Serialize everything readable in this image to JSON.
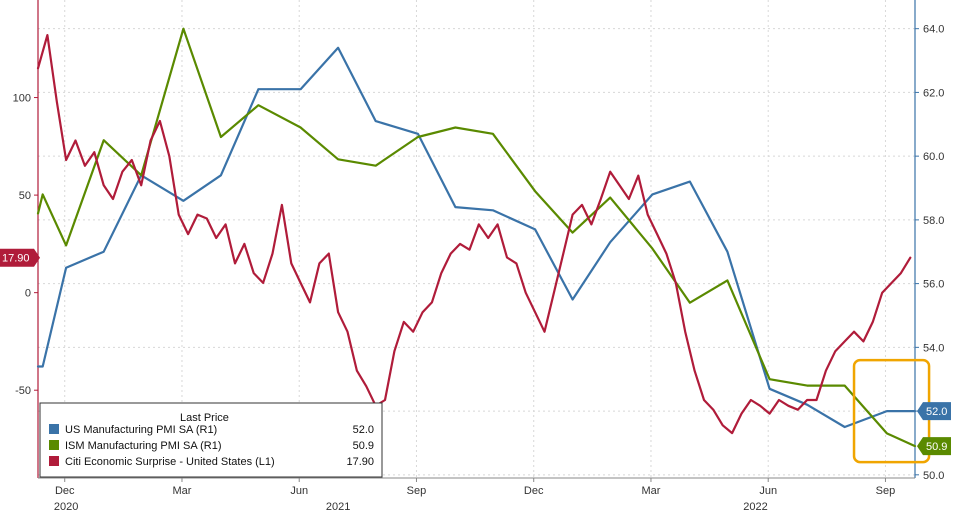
{
  "chart_data": {
    "type": "line",
    "left_axis": {
      "ticks": [
        -50,
        0,
        50,
        100
      ],
      "range": [
        -95,
        150
      ]
    },
    "right_axis": {
      "ticks": [
        50.0,
        52.0,
        54.0,
        56.0,
        58.0,
        60.0,
        62.0,
        64.0
      ],
      "range": [
        49.9,
        64.9
      ]
    },
    "x_range": [
      2020.86,
      2022.73
    ],
    "x_month_ticks": [
      {
        "label": "Dec",
        "x": 2020.917
      },
      {
        "label": "Mar",
        "x": 2021.167
      },
      {
        "label": "Jun",
        "x": 2021.417
      },
      {
        "label": "Sep",
        "x": 2021.667
      },
      {
        "label": "Dec",
        "x": 2021.917
      },
      {
        "label": "Mar",
        "x": 2022.167
      },
      {
        "label": "Jun",
        "x": 2022.417
      },
      {
        "label": "Sep",
        "x": 2022.667
      }
    ],
    "x_year_labels": [
      {
        "label": "2020",
        "x": 2020.92
      },
      {
        "label": "2021",
        "x": 2021.5
      },
      {
        "label": "2022",
        "x": 2022.39
      }
    ],
    "grid": true,
    "legend": {
      "title": "Last Price",
      "placement": "bottom-left",
      "entries": [
        {
          "label": "US Manufacturing PMI SA  (R1)",
          "value": "52.0",
          "color": "#3a73a8"
        },
        {
          "label": "ISM Manufacturing PMI SA  (R1)",
          "value": "50.9",
          "color": "#5a8a00"
        },
        {
          "label": "Citi Economic Surprise - United States  (L1)",
          "value": "17.90",
          "color": "#b01c3a"
        }
      ]
    },
    "last_value_tags": [
      {
        "text": "17.90",
        "axis": "left",
        "value": 17.9,
        "color": "#b01c3a"
      },
      {
        "text": "52.0",
        "axis": "right",
        "value": 52.0,
        "color": "#3a73a8"
      },
      {
        "text": "50.9",
        "axis": "right",
        "value": 50.9,
        "color": "#5a8a00"
      }
    ],
    "highlight_box_color": "#f0a500",
    "series": [
      {
        "name": "US Manufacturing PMI SA",
        "axis": "right",
        "color": "#3a73a8",
        "x": [
          2020.86,
          2020.87,
          2020.92,
          2021.0,
          2021.08,
          2021.17,
          2021.25,
          2021.33,
          2021.42,
          2021.5,
          2021.58,
          2021.67,
          2021.75,
          2021.83,
          2021.92,
          2022.0,
          2022.08,
          2022.17,
          2022.25,
          2022.33,
          2022.42,
          2022.5,
          2022.58,
          2022.67,
          2022.73
        ],
        "y": [
          53.4,
          53.4,
          56.5,
          57.0,
          59.4,
          58.6,
          59.4,
          62.1,
          62.1,
          63.4,
          61.1,
          60.7,
          58.4,
          58.3,
          57.7,
          55.5,
          57.3,
          58.8,
          59.2,
          57.0,
          52.7,
          52.2,
          51.5,
          52.0,
          52.0
        ]
      },
      {
        "name": "ISM Manufacturing PMI SA",
        "axis": "right",
        "color": "#5a8a00",
        "x": [
          2020.86,
          2020.87,
          2020.92,
          2021.0,
          2021.08,
          2021.17,
          2021.25,
          2021.33,
          2021.42,
          2021.5,
          2021.58,
          2021.67,
          2021.75,
          2021.83,
          2021.92,
          2022.0,
          2022.08,
          2022.17,
          2022.25,
          2022.33,
          2022.42,
          2022.5,
          2022.58,
          2022.67,
          2022.73
        ],
        "y": [
          58.2,
          58.8,
          57.2,
          60.5,
          59.4,
          64.0,
          60.6,
          61.6,
          60.9,
          59.9,
          59.7,
          60.6,
          60.9,
          60.7,
          58.9,
          57.6,
          58.7,
          57.1,
          55.4,
          56.1,
          53.0,
          52.8,
          52.8,
          51.3,
          50.9
        ]
      },
      {
        "name": "Citi Economic Surprise - United States",
        "axis": "left",
        "color": "#b01c3a",
        "x": [
          2020.86,
          2020.88,
          2020.9,
          2020.92,
          2020.94,
          2020.96,
          2020.98,
          2021.0,
          2021.02,
          2021.04,
          2021.06,
          2021.08,
          2021.1,
          2021.12,
          2021.14,
          2021.16,
          2021.18,
          2021.2,
          2021.22,
          2021.24,
          2021.26,
          2021.28,
          2021.3,
          2021.32,
          2021.34,
          2021.36,
          2021.38,
          2021.4,
          2021.42,
          2021.44,
          2021.46,
          2021.48,
          2021.5,
          2021.52,
          2021.54,
          2021.56,
          2021.58,
          2021.6,
          2021.62,
          2021.64,
          2021.66,
          2021.68,
          2021.7,
          2021.72,
          2021.74,
          2021.76,
          2021.78,
          2021.8,
          2021.82,
          2021.84,
          2021.86,
          2021.88,
          2021.9,
          2021.92,
          2021.94,
          2021.96,
          2021.98,
          2022.0,
          2022.02,
          2022.04,
          2022.06,
          2022.08,
          2022.1,
          2022.12,
          2022.14,
          2022.16,
          2022.18,
          2022.2,
          2022.22,
          2022.24,
          2022.26,
          2022.28,
          2022.3,
          2022.32,
          2022.34,
          2022.36,
          2022.38,
          2022.4,
          2022.42,
          2022.44,
          2022.46,
          2022.48,
          2022.5,
          2022.52,
          2022.54,
          2022.56,
          2022.58,
          2022.6,
          2022.62,
          2022.64,
          2022.66,
          2022.68,
          2022.7,
          2022.72
        ],
        "y": [
          115,
          132,
          98,
          68,
          78,
          65,
          72,
          55,
          48,
          62,
          68,
          55,
          78,
          88,
          70,
          40,
          30,
          40,
          38,
          28,
          35,
          15,
          25,
          10,
          5,
          20,
          45,
          15,
          5,
          -5,
          15,
          20,
          -10,
          -20,
          -40,
          -48,
          -58,
          -55,
          -30,
          -15,
          -20,
          -10,
          -5,
          10,
          20,
          25,
          22,
          35,
          28,
          35,
          18,
          15,
          0,
          -10,
          -20,
          0,
          20,
          40,
          45,
          35,
          48,
          62,
          55,
          48,
          60,
          40,
          30,
          20,
          5,
          -20,
          -40,
          -55,
          -60,
          -68,
          -72,
          -62,
          -55,
          -58,
          -62,
          -55,
          -58,
          -60,
          -55,
          -55,
          -40,
          -30,
          -25,
          -20,
          -25,
          -15,
          0,
          5,
          10,
          17.9
        ]
      }
    ]
  }
}
